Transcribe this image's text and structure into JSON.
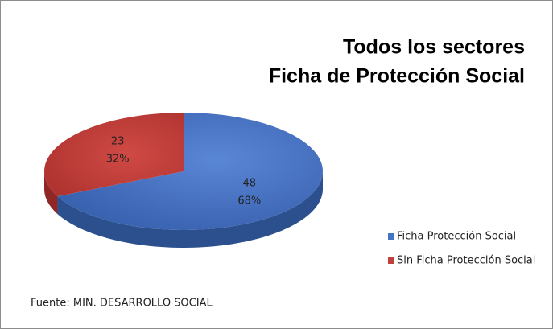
{
  "chart_data": {
    "type": "pie",
    "title": [
      "Todos los sectores",
      "Ficha de Protección Social"
    ],
    "categories": [
      "Ficha Protección Social",
      "Sin Ficha Protección Social"
    ],
    "values": [
      68,
      32
    ],
    "value_labels": [
      "68%",
      "32%"
    ],
    "counts": [
      48,
      23
    ],
    "colors": [
      "#4472c4",
      "#c0403c"
    ],
    "legend": "right",
    "source": "Fuente: MIN. DESARROLLO SOCIAL"
  }
}
